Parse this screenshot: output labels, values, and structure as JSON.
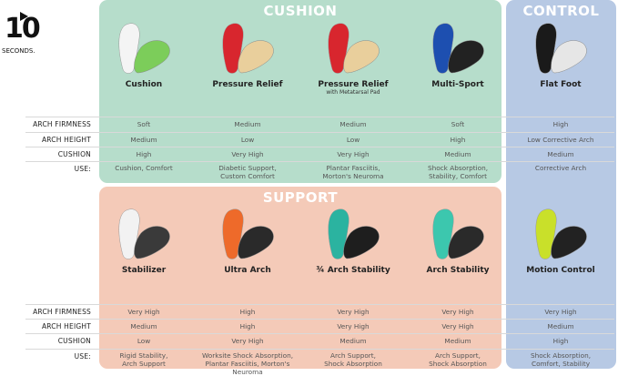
{
  "brand": {
    "logo_number": "10",
    "logo_word": "SECONDS."
  },
  "sections": {
    "cushion": "CUSHION",
    "support": "SUPPORT",
    "control": "CONTROL"
  },
  "row_labels": [
    "ARCH FIRMNESS",
    "ARCH HEIGHT",
    "CUSHION",
    "USE:"
  ],
  "top_products": [
    {
      "name": "Cushion",
      "sub": "",
      "colors": [
        "#f4f4f4",
        "#7ccd5a"
      ],
      "specs": [
        "Soft",
        "Medium",
        "High",
        "Cushion, Comfort"
      ]
    },
    {
      "name": "Pressure Relief",
      "sub": "",
      "colors": [
        "#d8262e",
        "#e9cf9c"
      ],
      "specs": [
        "Medium",
        "Low",
        "Very High",
        "Diabetic Support,\nCustom Comfort"
      ]
    },
    {
      "name": "Pressure Relief",
      "sub": "with Metatarsal Pad",
      "colors": [
        "#d8262e",
        "#e9cf9c"
      ],
      "specs": [
        "Medium",
        "Low",
        "Very High",
        "Plantar Fasciitis,\nMorton's Neuroma"
      ]
    },
    {
      "name": "Multi-Sport",
      "sub": "",
      "colors": [
        "#1d4fb0",
        "#222222"
      ],
      "specs": [
        "Soft",
        "High",
        "Medium",
        "Shock Absorption,\nStability, Comfort"
      ]
    },
    {
      "name": "Flat Foot",
      "sub": "",
      "colors": [
        "#1a1a1a",
        "#e6e6e6"
      ],
      "specs": [
        "High",
        "Low Corrective Arch",
        "Medium",
        "Corrective Arch"
      ]
    }
  ],
  "bottom_products": [
    {
      "name": "Stabilizer",
      "sub": "",
      "colors": [
        "#f2f2f2",
        "#3a3a3a"
      ],
      "specs": [
        "Very High",
        "Medium",
        "Low",
        "Rigid Stability,\nArch Support"
      ]
    },
    {
      "name": "Ultra Arch",
      "sub": "",
      "colors": [
        "#ee6a2a",
        "#2a2a2a"
      ],
      "specs": [
        "High",
        "High",
        "Very High",
        "Worksite Shock Absorption,\nPlantar Fasciitis, Morton's Neuroma"
      ]
    },
    {
      "name": "¾ Arch Stability",
      "sub": "",
      "colors": [
        "#2bb3a0",
        "#1e1e1e"
      ],
      "specs": [
        "Very High",
        "Very High",
        "Medium",
        "Arch Support,\nShock Absorption"
      ]
    },
    {
      "name": "Arch Stability",
      "sub": "",
      "colors": [
        "#3cc7ae",
        "#2a2a2a"
      ],
      "specs": [
        "Very High",
        "Very High",
        "Medium",
        "Arch Support,\nShock Absorption"
      ]
    },
    {
      "name": "Motion Control",
      "sub": "",
      "colors": [
        "#c9e02a",
        "#222222"
      ],
      "specs": [
        "Very High",
        "Medium",
        "High",
        "Shock Absorption,\nComfort, Stability"
      ]
    }
  ],
  "panel_colors": {
    "cushion": "#b6ddcb",
    "support": "#f4cab8",
    "control": "#b7c9e4"
  }
}
